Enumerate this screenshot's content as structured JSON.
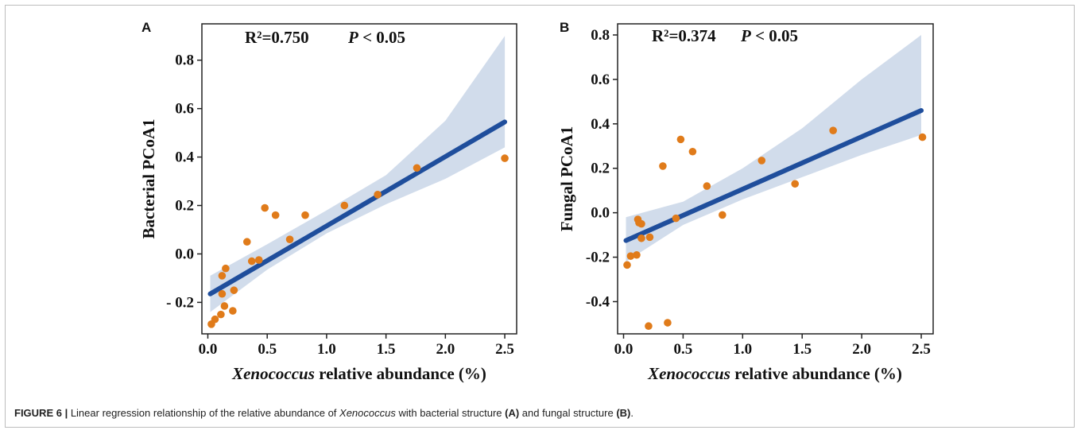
{
  "caption": {
    "label": "FIGURE 6 |",
    "text_1": " Linear regression relationship of the relative abundance of ",
    "genus": "Xenococcus",
    "text_2": " with bacterial structure ",
    "ref_a": "(A)",
    "text_3": " and fungal structure ",
    "ref_b": "(B)",
    "text_4": "."
  },
  "colors": {
    "points": "#e07b1a",
    "line": "#1f4e9c",
    "band": "#c9d6e8"
  },
  "chart_data": [
    {
      "type": "scatter",
      "panel": "A",
      "stat_r2": "R²=0.750",
      "stat_p_label": "P",
      "stat_p_rest": " < 0.05",
      "xlabel_italic": "Xenococcus",
      "xlabel_rest": " relative abundance (%)",
      "ylabel": "Bacterial PCoA1",
      "xlim": [
        -0.05,
        2.6
      ],
      "ylim": [
        -0.33,
        0.95
      ],
      "xticks": [
        0.0,
        0.5,
        1.0,
        1.5,
        2.0,
        2.5
      ],
      "xtick_labels": [
        "0.0",
        "0.5",
        "1.0",
        "1.5",
        "2.0",
        "2.5"
      ],
      "yticks": [
        -0.2,
        0.0,
        0.2,
        0.4,
        0.6,
        0.8
      ],
      "ytick_labels": [
        "- 0.2",
        "0.0",
        "0.2",
        "0.4",
        "0.6",
        "0.8"
      ],
      "fit": {
        "x": [
          0.02,
          2.5
        ],
        "y": [
          -0.165,
          0.545
        ]
      },
      "band": {
        "x": [
          0.02,
          0.5,
          1.0,
          1.5,
          2.0,
          2.5
        ],
        "lower": [
          -0.24,
          -0.065,
          0.085,
          0.205,
          0.31,
          0.44
        ],
        "upper": [
          -0.09,
          0.04,
          0.18,
          0.325,
          0.55,
          0.9
        ]
      },
      "points": [
        {
          "x": 0.03,
          "y": -0.29
        },
        {
          "x": 0.06,
          "y": -0.27
        },
        {
          "x": 0.11,
          "y": -0.25
        },
        {
          "x": 0.14,
          "y": -0.215
        },
        {
          "x": 0.21,
          "y": -0.235
        },
        {
          "x": 0.12,
          "y": -0.09
        },
        {
          "x": 0.12,
          "y": -0.165
        },
        {
          "x": 0.15,
          "y": -0.06
        },
        {
          "x": 0.22,
          "y": -0.15
        },
        {
          "x": 0.33,
          "y": 0.05
        },
        {
          "x": 0.37,
          "y": -0.03
        },
        {
          "x": 0.43,
          "y": -0.025
        },
        {
          "x": 0.48,
          "y": 0.19
        },
        {
          "x": 0.57,
          "y": 0.16
        },
        {
          "x": 0.69,
          "y": 0.06
        },
        {
          "x": 0.82,
          "y": 0.16
        },
        {
          "x": 1.15,
          "y": 0.2
        },
        {
          "x": 1.43,
          "y": 0.245
        },
        {
          "x": 1.76,
          "y": 0.355
        },
        {
          "x": 2.5,
          "y": 0.395
        }
      ]
    },
    {
      "type": "scatter",
      "panel": "B",
      "stat_r2": "R²=0.374",
      "stat_p_label": "P",
      "stat_p_rest": " < 0.05",
      "xlabel_italic": "Xenococcus",
      "xlabel_rest": " relative abundance (%)",
      "ylabel": "Fungal PCoA1",
      "xlim": [
        -0.05,
        2.6
      ],
      "ylim": [
        -0.545,
        0.85
      ],
      "xticks": [
        0.0,
        0.5,
        1.0,
        1.5,
        2.0,
        2.5
      ],
      "xtick_labels": [
        "0.0",
        "0.5",
        "1.0",
        "1.5",
        "2.0",
        "2.5"
      ],
      "yticks": [
        -0.4,
        -0.2,
        0.0,
        0.2,
        0.4,
        0.6,
        0.8
      ],
      "ytick_labels": [
        "-0.4",
        "-0.2",
        "0.0",
        "0.2",
        "0.4",
        "0.6",
        "0.8"
      ],
      "fit": {
        "x": [
          0.02,
          2.5
        ],
        "y": [
          -0.125,
          0.46
        ]
      },
      "band": {
        "x": [
          0.02,
          0.5,
          1.0,
          1.5,
          2.0,
          2.5
        ],
        "lower": [
          -0.22,
          -0.055,
          0.06,
          0.16,
          0.26,
          0.35
        ],
        "upper": [
          -0.02,
          0.05,
          0.2,
          0.38,
          0.6,
          0.8
        ]
      },
      "points": [
        {
          "x": 0.03,
          "y": -0.235
        },
        {
          "x": 0.06,
          "y": -0.195
        },
        {
          "x": 0.11,
          "y": -0.19
        },
        {
          "x": 0.12,
          "y": -0.03
        },
        {
          "x": 0.13,
          "y": -0.045
        },
        {
          "x": 0.15,
          "y": -0.05
        },
        {
          "x": 0.15,
          "y": -0.115
        },
        {
          "x": 0.21,
          "y": -0.51
        },
        {
          "x": 0.22,
          "y": -0.11
        },
        {
          "x": 0.33,
          "y": 0.21
        },
        {
          "x": 0.37,
          "y": -0.495
        },
        {
          "x": 0.44,
          "y": -0.025
        },
        {
          "x": 0.48,
          "y": 0.33
        },
        {
          "x": 0.58,
          "y": 0.275
        },
        {
          "x": 0.7,
          "y": 0.12
        },
        {
          "x": 0.83,
          "y": -0.01
        },
        {
          "x": 1.16,
          "y": 0.235
        },
        {
          "x": 1.44,
          "y": 0.13
        },
        {
          "x": 1.76,
          "y": 0.37
        },
        {
          "x": 2.51,
          "y": 0.34
        }
      ]
    }
  ]
}
